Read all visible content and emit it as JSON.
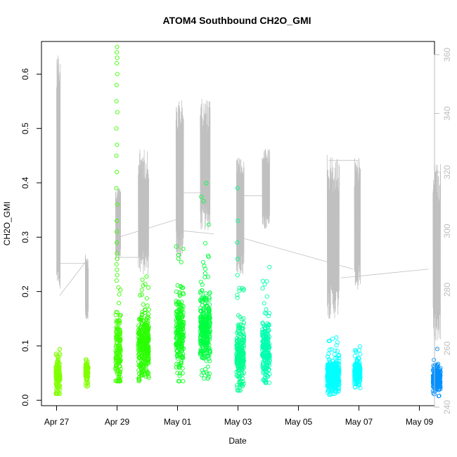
{
  "chart_data": {
    "type": "scatter",
    "title": "ATOM4 Southbound CH2O_GMI",
    "xlabel": "Date",
    "ylabel": "CH2O_GMI",
    "x_unit": "days since Apr 27",
    "xlim": [
      -0.5,
      12.5
    ],
    "ylim": [
      -0.01,
      0.66
    ],
    "y2lim": [
      240.5,
      364.5
    ],
    "x_ticks": [
      {
        "x": 0,
        "label": "Apr 27"
      },
      {
        "x": 2,
        "label": "Apr 29"
      },
      {
        "x": 4,
        "label": "May 01"
      },
      {
        "x": 6,
        "label": "May 03"
      },
      {
        "x": 8,
        "label": "May 05"
      },
      {
        "x": 10,
        "label": "May 07"
      },
      {
        "x": 12,
        "label": "May 09"
      }
    ],
    "y_ticks": [
      "0.0",
      "0.1",
      "0.2",
      "0.3",
      "0.4",
      "0.5",
      "0.6"
    ],
    "y2_ticks": [
      "240",
      "260",
      "280",
      "300",
      "320",
      "340",
      "360"
    ],
    "series": [
      {
        "name": "Apr 27 flight",
        "color": "#80ff00",
        "x_start": -0.03,
        "x_end": 0.12,
        "median": 0.045,
        "spread": 0.025,
        "range": [
          0.012,
          0.1
        ],
        "outliers": []
      },
      {
        "name": "Apr 28 flight",
        "color": "#80ff00",
        "x_start": 0.95,
        "x_end": 1.05,
        "median": 0.05,
        "spread": 0.015,
        "range": [
          0.025,
          0.075
        ],
        "outliers": []
      },
      {
        "name": "Apr 29 flight",
        "color": "#40ff00",
        "x_start": 1.95,
        "x_end": 2.12,
        "median": 0.09,
        "spread": 0.05,
        "range": [
          0.035,
          0.21
        ],
        "outliers": [
          0.65,
          0.64,
          0.63,
          0.62,
          0.6,
          0.58,
          0.55,
          0.53,
          0.5,
          0.47,
          0.45,
          0.42,
          0.39,
          0.36,
          0.33,
          0.31,
          0.29,
          0.27,
          0.26,
          0.25,
          0.24,
          0.23,
          0.22
        ]
      },
      {
        "name": "Apr 30 flight",
        "color": "#2aff00",
        "x_start": 2.7,
        "x_end": 3.05,
        "median": 0.1,
        "spread": 0.04,
        "range": [
          0.035,
          0.23
        ],
        "outliers": []
      },
      {
        "name": "May 01 flight",
        "color": "#10ff20",
        "x_start": 3.95,
        "x_end": 4.2,
        "median": 0.12,
        "spread": 0.05,
        "range": [
          0.035,
          0.3
        ],
        "outliers": []
      },
      {
        "name": "May 02 flight",
        "color": "#00ff40",
        "x_start": 4.75,
        "x_end": 5.08,
        "median": 0.13,
        "spread": 0.05,
        "range": [
          0.04,
          0.4
        ],
        "outliers": []
      },
      {
        "name": "May 03 flight",
        "color": "#00ff90",
        "x_start": 5.95,
        "x_end": 6.2,
        "median": 0.08,
        "spread": 0.04,
        "range": [
          0.018,
          0.22
        ],
        "outliers": [
          0.39,
          0.33,
          0.29,
          0.26,
          0.23
        ]
      },
      {
        "name": "May 04 flight",
        "color": "#00ffb0",
        "x_start": 6.8,
        "x_end": 7.05,
        "median": 0.09,
        "spread": 0.04,
        "range": [
          0.032,
          0.26
        ],
        "outliers": []
      },
      {
        "name": "May 06 flight",
        "color": "#00ffff",
        "x_start": 8.95,
        "x_end": 9.35,
        "median": 0.045,
        "spread": 0.02,
        "range": [
          0.01,
          0.12
        ],
        "outliers": []
      },
      {
        "name": "May 07 flight",
        "color": "#00ffff",
        "x_start": 9.85,
        "x_end": 10.05,
        "median": 0.05,
        "spread": 0.015,
        "range": [
          0.015,
          0.1
        ],
        "outliers": []
      },
      {
        "name": "May 09 flight",
        "color": "#0090ff",
        "x_start": 12.45,
        "x_end": 12.7,
        "median": 0.04,
        "spread": 0.015,
        "range": [
          0.005,
          0.095
        ],
        "outliers": []
      }
    ],
    "secondary_series": {
      "name": "gray trace (right axis)",
      "color": "#c0c0c0",
      "segments": [
        {
          "x_start": 0.0,
          "x_end": 0.12,
          "base": 280,
          "top": 362
        },
        {
          "x_start": 0.95,
          "x_end": 1.05,
          "base": 270,
          "top": 292
        },
        {
          "x_start": 1.95,
          "x_end": 2.12,
          "base": 290,
          "top": 315
        },
        {
          "x_start": 2.7,
          "x_end": 3.05,
          "base": 285,
          "top": 328
        },
        {
          "x_start": 3.95,
          "x_end": 4.2,
          "base": 290,
          "top": 345
        },
        {
          "x_start": 4.75,
          "x_end": 5.08,
          "base": 300,
          "top": 345
        },
        {
          "x_start": 5.95,
          "x_end": 6.2,
          "base": 285,
          "top": 325
        },
        {
          "x_start": 6.8,
          "x_end": 7.05,
          "base": 300,
          "top": 328
        },
        {
          "x_start": 8.95,
          "x_end": 9.35,
          "base": 270,
          "top": 326
        },
        {
          "x_start": 9.85,
          "x_end": 10.05,
          "base": 280,
          "top": 325
        },
        {
          "x_start": 12.45,
          "x_end": 12.7,
          "base": 262,
          "top": 324
        }
      ],
      "connectors": [
        [
          0.0,
          289,
          1.0,
          289
        ],
        [
          0.1,
          278,
          1.0,
          290
        ],
        [
          2.0,
          291,
          2.9,
          291
        ],
        [
          2.1,
          298,
          4.0,
          304
        ],
        [
          4.0,
          313,
          4.9,
          313
        ],
        [
          4.2,
          300,
          5.2,
          299
        ],
        [
          6.1,
          312,
          7.0,
          312
        ],
        [
          6.0,
          298,
          9.8,
          287
        ],
        [
          9.0,
          324,
          10.0,
          324
        ],
        [
          9.4,
          284,
          12.3,
          287
        ]
      ]
    }
  }
}
